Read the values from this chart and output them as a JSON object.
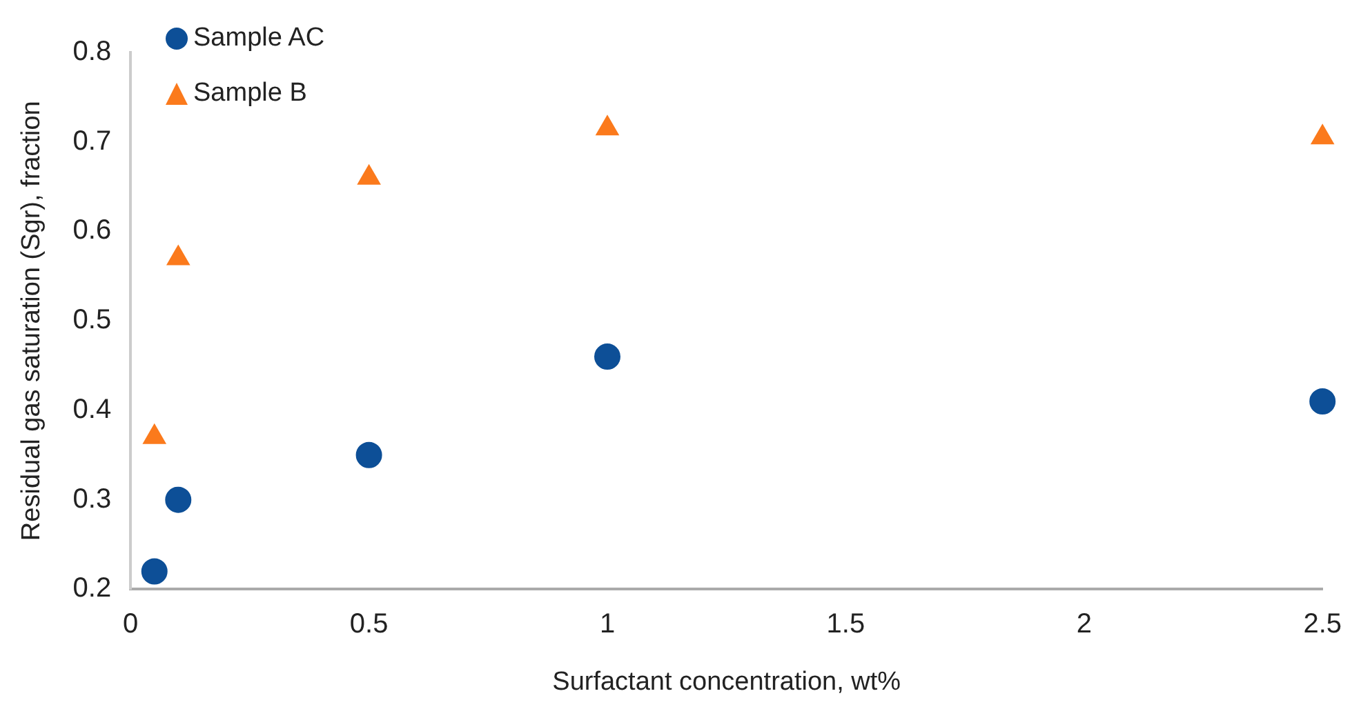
{
  "chart_data": {
    "type": "scatter",
    "xlabel": "Surfactant concentration, wt%",
    "ylabel": "Residual gas saturation (Sgr), fraction",
    "series": [
      {
        "name": "Sample AC",
        "color": "#0d4f97",
        "marker": "circle",
        "x": [
          0.05,
          0.1,
          0.5,
          1,
          2.5
        ],
        "values": [
          0.22,
          0.3,
          0.35,
          0.46,
          0.41
        ]
      },
      {
        "name": "Sample B",
        "color": "#fb7a1c",
        "marker": "triangle",
        "x": [
          0.05,
          0.1,
          0.5,
          1,
          2.5
        ],
        "values": [
          0.37,
          0.57,
          0.66,
          0.715,
          0.705
        ]
      }
    ],
    "xlim": [
      0,
      2.5
    ],
    "xticks": [
      0,
      0.5,
      1,
      1.5,
      2,
      2.5
    ],
    "ylim": [
      0.2,
      0.8
    ],
    "yticks": [
      0.2,
      0.3,
      0.4,
      0.5,
      0.6,
      0.7,
      0.8
    ],
    "grid": false,
    "legend": "top left"
  }
}
